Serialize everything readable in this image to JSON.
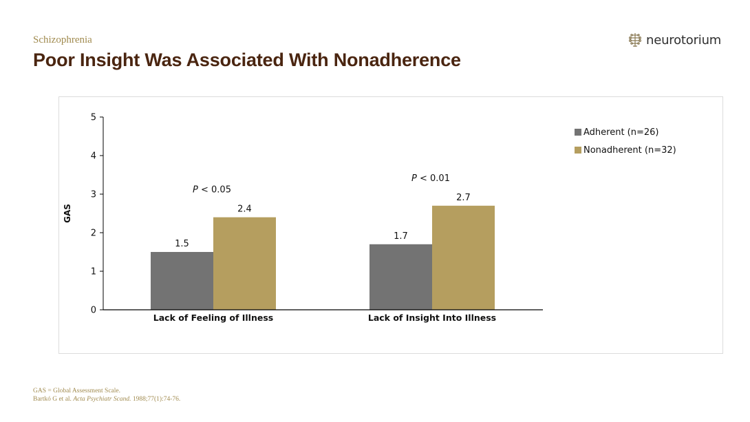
{
  "header": {
    "section": "Schizophrenia",
    "title": "Poor Insight Was Associated With Nonadherence"
  },
  "logo": {
    "text": "neurotorium",
    "icon": "brain-circuit-icon"
  },
  "chart_data": {
    "type": "bar",
    "categories": [
      "Lack of Feeling of Illness",
      "Lack of Insight Into Illness"
    ],
    "series": [
      {
        "name": "Adherent (n=26)",
        "values": [
          1.5,
          1.7
        ],
        "color": "#737373"
      },
      {
        "name": "Nonadherent (n=32)",
        "values": [
          2.4,
          2.7
        ],
        "color": "#b59e5f"
      }
    ],
    "data_labels": [
      [
        "1.5",
        "2.4"
      ],
      [
        "1.7",
        "2.7"
      ]
    ],
    "annotations": [
      {
        "italic": "P",
        "text": " < 0.05"
      },
      {
        "italic": "P",
        "text": " < 0.01"
      }
    ],
    "xlabel": "",
    "ylabel": "GAS",
    "ylim": [
      0,
      5
    ],
    "yticks": [
      "0",
      "1",
      "2",
      "3",
      "4",
      "5"
    ],
    "grid": false,
    "legend_position": "top-right"
  },
  "footnotes": {
    "line1": "GAS = Global Assessment Scale.",
    "line2_prefix": "Bartkó G et al. ",
    "line2_journal": "Acta Psychiatr Scand.",
    "line2_suffix": " 1988;77(1):74-76."
  }
}
